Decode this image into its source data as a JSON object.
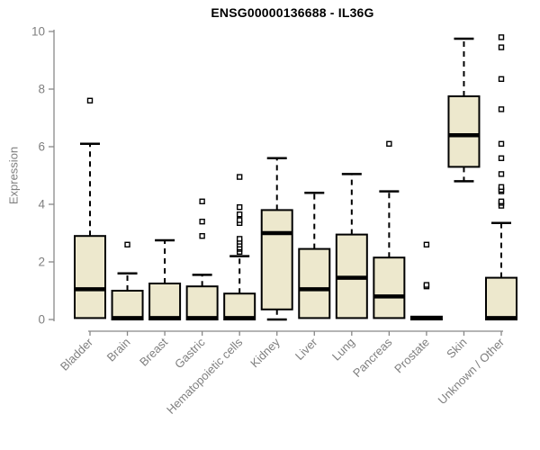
{
  "chart_data": {
    "type": "boxplot",
    "title": "ENSG00000136688 - IL36G",
    "xlabel": "",
    "ylabel": "Expression",
    "ylim": [
      0,
      10
    ],
    "yticks": [
      0,
      2,
      4,
      6,
      8,
      10
    ],
    "grid": false,
    "legend": "none",
    "x_tick_rotation": 45,
    "colors": {
      "box_fill": "#EDE8CD",
      "box_stroke": "#000000",
      "median": "#000000",
      "whisker": "#000000",
      "outlier_stroke": "#000000",
      "outlier_fill": "#ffffff",
      "axis_line": "#888888",
      "tick_label": "#7f7f7f",
      "title_color": "#000000",
      "background": "#ffffff"
    },
    "categories": [
      "Bladder",
      "Brain",
      "Breast",
      "Gastric",
      "Hematopoietic cells",
      "Kidney",
      "Liver",
      "Lung",
      "Pancreas",
      "Prostate",
      "Skin",
      "Unknown / Other"
    ],
    "boxes": [
      {
        "label": "Bladder",
        "whislo": 0.05,
        "q1": 0.05,
        "med": 1.05,
        "q3": 2.9,
        "whishi": 6.1,
        "outliers": [
          7.6
        ]
      },
      {
        "label": "Brain",
        "whislo": 0,
        "q1": 0,
        "med": 0.05,
        "q3": 1.0,
        "whishi": 1.6,
        "outliers": [
          2.6
        ]
      },
      {
        "label": "Breast",
        "whislo": 0,
        "q1": 0,
        "med": 0.05,
        "q3": 1.25,
        "whishi": 2.75,
        "outliers": []
      },
      {
        "label": "Gastric",
        "whislo": 0,
        "q1": 0,
        "med": 0.05,
        "q3": 1.15,
        "whishi": 1.55,
        "outliers": [
          2.9,
          3.4,
          4.1
        ]
      },
      {
        "label": "Hematopoietic cells",
        "whislo": 0,
        "q1": 0,
        "med": 0.05,
        "q3": 0.9,
        "whishi": 2.2,
        "outliers": [
          2.35,
          2.45,
          2.5,
          2.6,
          2.7,
          2.8,
          3.35,
          3.45,
          3.65,
          3.9,
          4.95
        ]
      },
      {
        "label": "Kidney",
        "whislo": 0,
        "q1": 0.35,
        "med": 3.0,
        "q3": 3.8,
        "whishi": 5.6,
        "outliers": []
      },
      {
        "label": "Liver",
        "whislo": 0.05,
        "q1": 0.05,
        "med": 1.05,
        "q3": 2.45,
        "whishi": 4.4,
        "outliers": []
      },
      {
        "label": "Lung",
        "whislo": 0.05,
        "q1": 0.05,
        "med": 1.45,
        "q3": 2.95,
        "whishi": 5.05,
        "outliers": []
      },
      {
        "label": "Pancreas",
        "whislo": 0.05,
        "q1": 0.05,
        "med": 0.8,
        "q3": 2.15,
        "whishi": 4.45,
        "outliers": [
          6.1
        ]
      },
      {
        "label": "Prostate",
        "whislo": 0,
        "q1": 0,
        "med": 0.05,
        "q3": 0.1,
        "whishi": 0.1,
        "outliers": [
          1.15,
          1.2,
          2.6
        ]
      },
      {
        "label": "Skin",
        "whislo": 4.8,
        "q1": 5.3,
        "med": 6.4,
        "q3": 7.75,
        "whishi": 9.75,
        "outliers": []
      },
      {
        "label": "Unknown / Other",
        "whislo": 0,
        "q1": 0,
        "med": 0.05,
        "q3": 1.45,
        "whishi": 3.35,
        "outliers": [
          3.95,
          4.05,
          4.1,
          4.45,
          4.5,
          4.6,
          5.05,
          5.6,
          6.1,
          7.3,
          8.35,
          9.45,
          9.8
        ]
      }
    ]
  }
}
